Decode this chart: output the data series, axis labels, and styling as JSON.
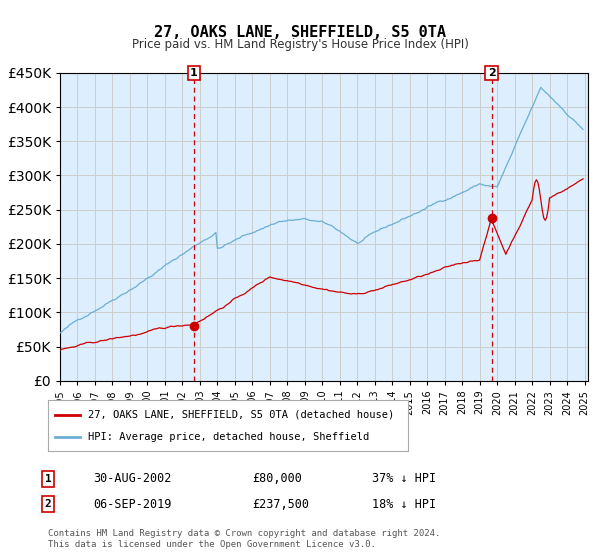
{
  "title": "27, OAKS LANE, SHEFFIELD, S5 0TA",
  "subtitle": "Price paid vs. HM Land Registry's House Price Index (HPI)",
  "legend_line1": "27, OAKS LANE, SHEFFIELD, S5 0TA (detached house)",
  "legend_line2": "HPI: Average price, detached house, Sheffield",
  "transaction1_date": "30-AUG-2002",
  "transaction1_price": 80000,
  "transaction1_label": "37% ↓ HPI",
  "transaction2_date": "06-SEP-2019",
  "transaction2_price": 237500,
  "transaction2_label": "18% ↓ HPI",
  "hpi_color": "#6baed6",
  "price_color": "#cc0000",
  "bg_color": "#ddeeff",
  "plot_bg": "#ffffff",
  "grid_color": "#cccccc",
  "vline_color": "#cc0000",
  "marker_color": "#cc0000",
  "ylim_min": 0,
  "ylim_max": 450000,
  "xstart": 1995.0,
  "xend": 2025.2,
  "footnote": "Contains HM Land Registry data © Crown copyright and database right 2024.\nThis data is licensed under the Open Government Licence v3.0."
}
